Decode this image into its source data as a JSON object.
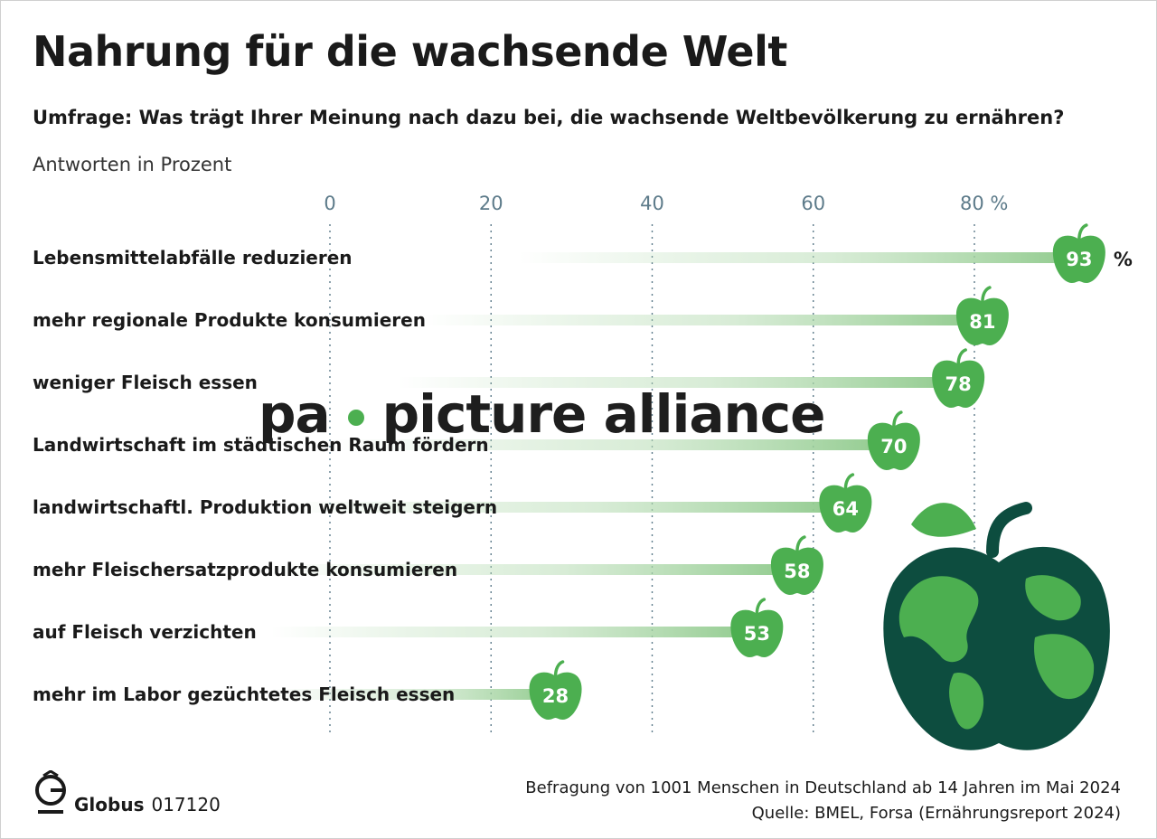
{
  "header": {
    "title": "Nahrung für die wachsende Welt",
    "subtitle": "Umfrage: Was trägt Ihrer Meinung nach dazu bei, die wachsende Weltbevölkerung zu ernähren?",
    "unit_label": "Antworten in Prozent"
  },
  "chart_data": {
    "type": "bar",
    "orientation": "horizontal",
    "categories": [
      "Lebensmittelabfälle reduzieren",
      "mehr regionale Produkte konsumieren",
      "weniger Fleisch essen",
      "Landwirtschaft im städtischen Raum fördern",
      "landwirtschaftl. Produktion weltweit steigern",
      "mehr Fleischersatzprodukte konsumieren",
      "auf Fleisch verzichten",
      "mehr im Labor gezüchtetes Fleisch essen"
    ],
    "values": [
      93,
      81,
      78,
      70,
      64,
      58,
      53,
      28
    ],
    "xlim": [
      0,
      100
    ],
    "ticks": [
      0,
      20,
      40,
      60,
      80
    ],
    "tick_labels": [
      "0",
      "20",
      "40",
      "60",
      "80 %"
    ],
    "first_value_suffix": "%",
    "grid": "dotted vertical",
    "marker": "apple-icon",
    "colors": {
      "bar": "#a9d6a6",
      "marker": "#4caf50",
      "tick": "#5d7b8a"
    }
  },
  "watermark": {
    "left": "pa",
    "right": "picture alliance"
  },
  "footer": {
    "note": "Befragung von 1001 Menschen in Deutschland ab 14 Jahren im Mai 2024",
    "source": "Quelle: BMEL, Forsa (Ernährungsreport 2024)",
    "brand": "Globus",
    "code": "017120"
  },
  "illustration": {
    "icon": "globe-apple-icon",
    "colors": {
      "land": "#4caf50",
      "sea": "#0d4d3f",
      "leaf": "#4caf50"
    }
  }
}
